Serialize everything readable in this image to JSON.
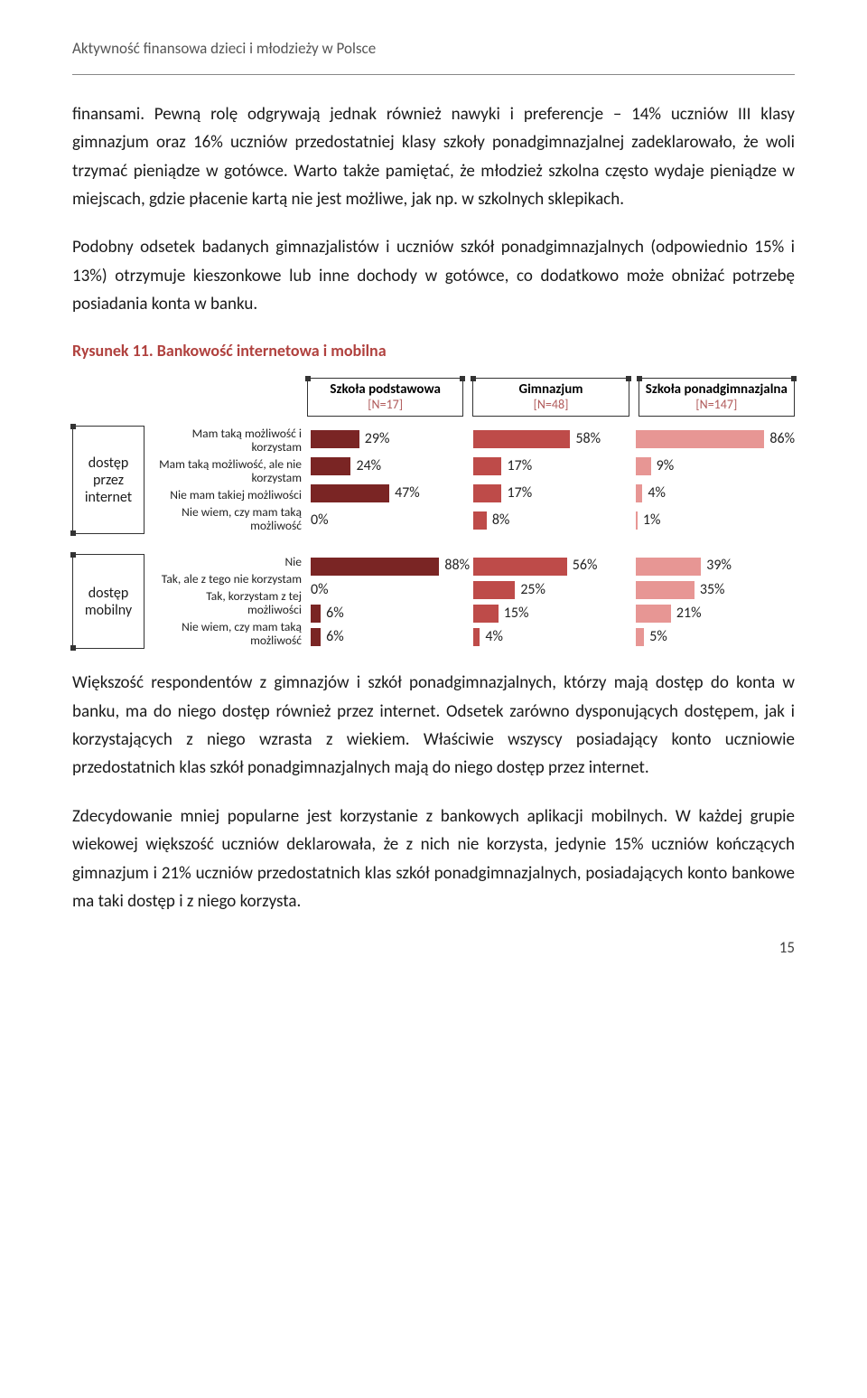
{
  "header": "Aktywność finansowa dzieci i młodzieży w Polsce",
  "body_p1": "finansami. Pewną rolę odgrywają jednak również nawyki i preferencje – 14% uczniów III klasy gimnazjum oraz 16% uczniów przedostatniej klasy szkoły ponadgimnazjalnej zadeklarowało, że woli trzymać pieniądze w gotówce. Warto także pamiętać, że młodzież szkolna często wydaje pieniądze w miejscach, gdzie płacenie kartą nie jest możliwe, jak np. w szkolnych sklepikach.",
  "body_p2": "Podobny odsetek badanych gimnazjalistów i uczniów szkół ponadgimnazjalnych (odpowiednio 15% i 13%) otrzymuje kieszonkowe lub inne dochody w gotówce, co dodatkowo może obniżać potrzebę posiadania konta w banku.",
  "fig_caption": "Rysunek 11. Bankowość internetowa i mobilna",
  "body_p3": "Większość respondentów z gimnazjów i szkół ponadgimnazjalnych, którzy mają dostęp do konta w banku, ma do niego dostęp również przez internet. Odsetek zarówno dysponujących dostępem, jak i korzystających z niego wzrasta z wiekiem. Właściwie wszyscy posiadający konto uczniowie przedostatnich klas szkół ponadgimnazjalnych mają do niego dostęp przez internet.",
  "body_p4": "Zdecydowanie mniej popularne jest korzystanie z bankowych aplikacji mobilnych. W każdej grupie wiekowej większość uczniów deklarowała, że z nich nie korzysta, jedynie 15% uczniów kończących gimnazjum i 21% uczniów przedostatnich klas szkół ponadgimnazjalnych, posiadających konto bankowe ma taki dostęp i z niego korzysta.",
  "page_number": "15",
  "chart": {
    "type": "bar",
    "max_pct": 95,
    "columns": [
      {
        "title": "Szkoła podstawowa",
        "sub": "[N=17]",
        "color": "#7a2524"
      },
      {
        "title": "Gimnazjum",
        "sub": "[N=48]",
        "color": "#be4b49"
      },
      {
        "title": "Szkoła ponadgimnazjalna",
        "sub": "[N=147]",
        "color": "#e79694"
      }
    ],
    "groups": [
      {
        "side_label": "dostęp przez internet",
        "rows": [
          {
            "label": "Mam taką możliwość i korzystam",
            "values": [
              29,
              58,
              86
            ]
          },
          {
            "label": "Mam taką możliwość, ale nie korzystam",
            "values": [
              24,
              17,
              9
            ]
          },
          {
            "label": "Nie mam takiej możliwości",
            "values": [
              47,
              17,
              4
            ]
          },
          {
            "label": "Nie wiem, czy mam taką możliwość",
            "values": [
              0,
              8,
              1
            ]
          }
        ]
      },
      {
        "side_label": "dostęp mobilny",
        "rows": [
          {
            "label": "Nie",
            "values": [
              88,
              56,
              39
            ]
          },
          {
            "label": "Tak, ale z tego nie korzystam",
            "values": [
              0,
              25,
              35
            ]
          },
          {
            "label": "Tak, korzystam z tej możliwości",
            "values": [
              6,
              15,
              21
            ]
          },
          {
            "label": "Nie wiem, czy mam taką możliwość",
            "values": [
              6,
              4,
              5
            ]
          }
        ]
      }
    ]
  }
}
